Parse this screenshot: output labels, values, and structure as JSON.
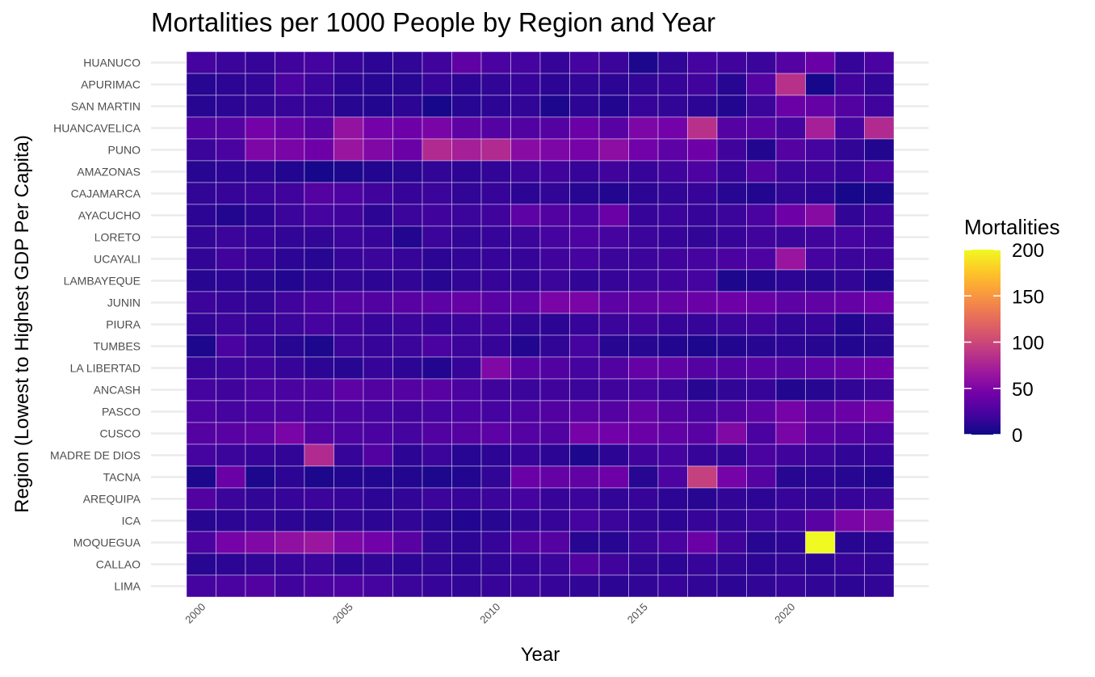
{
  "chart_data": {
    "type": "heatmap",
    "title": "Mortalities per 1000 People by Region and Year",
    "xlabel": "Year",
    "ylabel": "Region (Lowest to Highest GDP Per Capita)",
    "x_ticks": [
      "2000",
      "2005",
      "2010",
      "2015",
      "2020"
    ],
    "years": [
      2000,
      2001,
      2002,
      2003,
      2004,
      2005,
      2006,
      2007,
      2008,
      2009,
      2010,
      2011,
      2012,
      2013,
      2014,
      2015,
      2016,
      2017,
      2018,
      2019,
      2020,
      2021,
      2022,
      2023
    ],
    "regions": [
      "HUANUCO",
      "APURIMAC",
      "SAN MARTIN",
      "HUANCAVELICA",
      "PUNO",
      "AMAZONAS",
      "CAJAMARCA",
      "AYACUCHO",
      "LORETO",
      "UCAYALI",
      "LAMBAYEQUE",
      "JUNIN",
      "PIURA",
      "TUMBES",
      "LA LIBERTAD",
      "ANCASH",
      "PASCO",
      "CUSCO",
      "MADRE DE DIOS",
      "TACNA",
      "AREQUIPA",
      "ICA",
      "MOQUEGUA",
      "CALLAO",
      "LIMA"
    ],
    "values": [
      [
        22,
        18,
        16,
        20,
        22,
        16,
        12,
        14,
        20,
        35,
        24,
        22,
        16,
        22,
        18,
        6,
        14,
        22,
        20,
        18,
        30,
        40,
        16,
        24
      ],
      [
        10,
        12,
        14,
        24,
        18,
        12,
        10,
        10,
        16,
        12,
        14,
        16,
        12,
        14,
        12,
        14,
        16,
        20,
        10,
        30,
        85,
        4,
        20,
        14
      ],
      [
        10,
        12,
        14,
        16,
        16,
        10,
        8,
        12,
        4,
        10,
        12,
        14,
        6,
        12,
        8,
        16,
        14,
        12,
        8,
        18,
        40,
        38,
        28,
        20
      ],
      [
        28,
        30,
        45,
        38,
        30,
        62,
        45,
        42,
        48,
        35,
        30,
        28,
        30,
        40,
        32,
        50,
        45,
        85,
        30,
        32,
        22,
        72,
        22,
        80
      ],
      [
        18,
        24,
        50,
        48,
        42,
        65,
        52,
        40,
        80,
        72,
        80,
        56,
        50,
        46,
        58,
        44,
        34,
        42,
        20,
        8,
        30,
        22,
        14,
        8
      ],
      [
        10,
        12,
        12,
        8,
        4,
        6,
        8,
        10,
        14,
        12,
        14,
        18,
        20,
        16,
        20,
        16,
        20,
        26,
        16,
        28,
        18,
        20,
        16,
        24
      ],
      [
        14,
        16,
        18,
        20,
        30,
        26,
        20,
        16,
        18,
        14,
        16,
        12,
        14,
        10,
        8,
        12,
        14,
        16,
        10,
        8,
        14,
        12,
        4,
        6
      ],
      [
        12,
        8,
        12,
        18,
        22,
        20,
        12,
        18,
        20,
        18,
        20,
        34,
        28,
        24,
        40,
        16,
        18,
        16,
        18,
        24,
        42,
        55,
        14,
        20
      ],
      [
        14,
        18,
        16,
        14,
        14,
        18,
        16,
        8,
        18,
        14,
        16,
        18,
        22,
        26,
        22,
        18,
        16,
        14,
        16,
        20,
        18,
        20,
        22,
        20
      ],
      [
        14,
        20,
        16,
        12,
        10,
        16,
        18,
        16,
        12,
        14,
        16,
        16,
        20,
        22,
        18,
        18,
        20,
        22,
        24,
        26,
        65,
        22,
        18,
        20
      ],
      [
        10,
        12,
        10,
        8,
        12,
        14,
        12,
        14,
        10,
        14,
        16,
        14,
        18,
        14,
        16,
        18,
        20,
        22,
        6,
        8,
        12,
        10,
        14,
        8
      ],
      [
        18,
        16,
        14,
        20,
        24,
        30,
        28,
        32,
        34,
        38,
        32,
        34,
        48,
        48,
        34,
        36,
        38,
        40,
        42,
        40,
        34,
        36,
        38,
        44
      ],
      [
        14,
        18,
        16,
        18,
        22,
        20,
        16,
        18,
        16,
        18,
        20,
        14,
        12,
        16,
        18,
        20,
        16,
        16,
        18,
        20,
        14,
        16,
        8,
        14
      ],
      [
        6,
        24,
        16,
        10,
        6,
        18,
        16,
        18,
        24,
        18,
        16,
        8,
        14,
        22,
        10,
        10,
        8,
        6,
        8,
        10,
        12,
        10,
        8,
        10
      ],
      [
        16,
        18,
        20,
        16,
        12,
        10,
        16,
        12,
        8,
        16,
        52,
        32,
        28,
        22,
        28,
        38,
        36,
        30,
        28,
        32,
        30,
        34,
        38,
        42
      ],
      [
        22,
        20,
        24,
        24,
        26,
        34,
        28,
        30,
        32,
        24,
        20,
        18,
        20,
        18,
        20,
        22,
        18,
        10,
        14,
        16,
        8,
        10,
        14,
        18
      ],
      [
        26,
        22,
        24,
        26,
        22,
        24,
        22,
        20,
        22,
        24,
        22,
        26,
        28,
        32,
        30,
        38,
        30,
        24,
        28,
        34,
        46,
        34,
        40,
        46
      ],
      [
        30,
        32,
        34,
        48,
        30,
        26,
        24,
        22,
        28,
        30,
        34,
        30,
        28,
        46,
        44,
        40,
        36,
        32,
        52,
        24,
        48,
        32,
        28,
        26
      ],
      [
        22,
        18,
        16,
        14,
        80,
        16,
        28,
        12,
        18,
        10,
        12,
        16,
        12,
        6,
        12,
        20,
        22,
        16,
        14,
        24,
        20,
        18,
        14,
        16
      ],
      [
        6,
        40,
        6,
        12,
        6,
        8,
        8,
        8,
        6,
        8,
        14,
        40,
        38,
        36,
        42,
        10,
        26,
        95,
        46,
        30,
        10,
        12,
        10,
        8
      ],
      [
        28,
        18,
        14,
        16,
        18,
        16,
        12,
        14,
        18,
        16,
        18,
        22,
        16,
        18,
        14,
        16,
        12,
        10,
        14,
        12,
        16,
        14,
        16,
        18
      ],
      [
        10,
        12,
        14,
        12,
        10,
        14,
        12,
        14,
        10,
        8,
        10,
        14,
        16,
        22,
        18,
        14,
        12,
        16,
        14,
        18,
        20,
        32,
        48,
        52
      ],
      [
        24,
        46,
        52,
        60,
        66,
        50,
        44,
        32,
        14,
        12,
        16,
        28,
        30,
        10,
        10,
        18,
        24,
        40,
        20,
        10,
        12,
        200,
        10,
        12
      ],
      [
        10,
        12,
        14,
        16,
        18,
        12,
        14,
        12,
        14,
        12,
        14,
        16,
        18,
        28,
        20,
        14,
        12,
        16,
        14,
        12,
        14,
        12,
        16,
        14
      ],
      [
        22,
        24,
        28,
        20,
        24,
        26,
        22,
        18,
        16,
        14,
        16,
        18,
        16,
        14,
        12,
        14,
        16,
        14,
        12,
        14,
        16,
        14,
        12,
        14
      ]
    ],
    "legend": {
      "title": "Mortalities",
      "ticks": [
        "0",
        "50",
        "100",
        "150",
        "200"
      ],
      "range": [
        0,
        200
      ],
      "placement": "right",
      "palette": [
        "#0d0887",
        "#46039f",
        "#7201a8",
        "#9c179e",
        "#bd3786",
        "#d8576b",
        "#ed7953",
        "#fb9f3a",
        "#fdca26",
        "#f0f921"
      ]
    },
    "colors": {
      "gridline": "#ebebeb",
      "tile_border": "#ffffff"
    }
  }
}
